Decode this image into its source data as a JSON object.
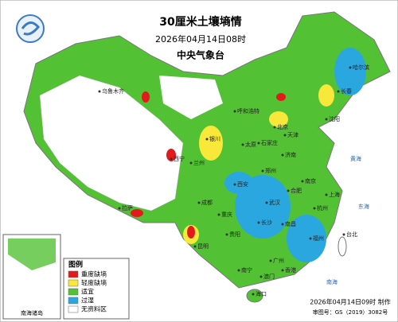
{
  "header": {
    "title": "30厘米土壤墒情",
    "date": "2026年04月14日08时",
    "issuer": "中央气象台"
  },
  "legend": {
    "title": "图例",
    "items": [
      {
        "label": "重度缺墒",
        "color": "#e31a1c"
      },
      {
        "label": "轻度缺墒",
        "color": "#f7e83a"
      },
      {
        "label": "适宜",
        "color": "#52c234"
      },
      {
        "label": "过湿",
        "color": "#2ba7e0"
      },
      {
        "label": "无资料区",
        "color": "#ffffff"
      }
    ]
  },
  "footer": {
    "made": "2026年04月14日09时 制作",
    "approval": "审图号：GS（2019）3082号"
  },
  "inset": {
    "label": "南海诸岛"
  },
  "places": [
    {
      "label": "北京"
    },
    {
      "label": "天津"
    },
    {
      "label": "石家庄"
    },
    {
      "label": "太原"
    },
    {
      "label": "济南"
    },
    {
      "label": "郑州"
    },
    {
      "label": "西安"
    },
    {
      "label": "武汉"
    },
    {
      "label": "南京"
    },
    {
      "label": "上海"
    },
    {
      "label": "杭州"
    },
    {
      "label": "合肥"
    },
    {
      "label": "长沙"
    },
    {
      "label": "南昌"
    },
    {
      "label": "福州"
    },
    {
      "label": "台北"
    },
    {
      "label": "广州"
    },
    {
      "label": "香港"
    },
    {
      "label": "澳门"
    },
    {
      "label": "南宁"
    },
    {
      "label": "海口"
    },
    {
      "label": "贵阳"
    },
    {
      "label": "昆明"
    },
    {
      "label": "成都"
    },
    {
      "label": "重庆"
    },
    {
      "label": "兰州"
    },
    {
      "label": "西宁"
    },
    {
      "label": "银川"
    },
    {
      "label": "拉萨"
    },
    {
      "label": "呼和浩特"
    },
    {
      "label": "沈阳"
    },
    {
      "label": "长春"
    },
    {
      "label": "哈尔滨"
    },
    {
      "label": "乌鲁木齐"
    },
    {
      "label": "黄海"
    },
    {
      "label": "东海"
    },
    {
      "label": "南海"
    }
  ]
}
